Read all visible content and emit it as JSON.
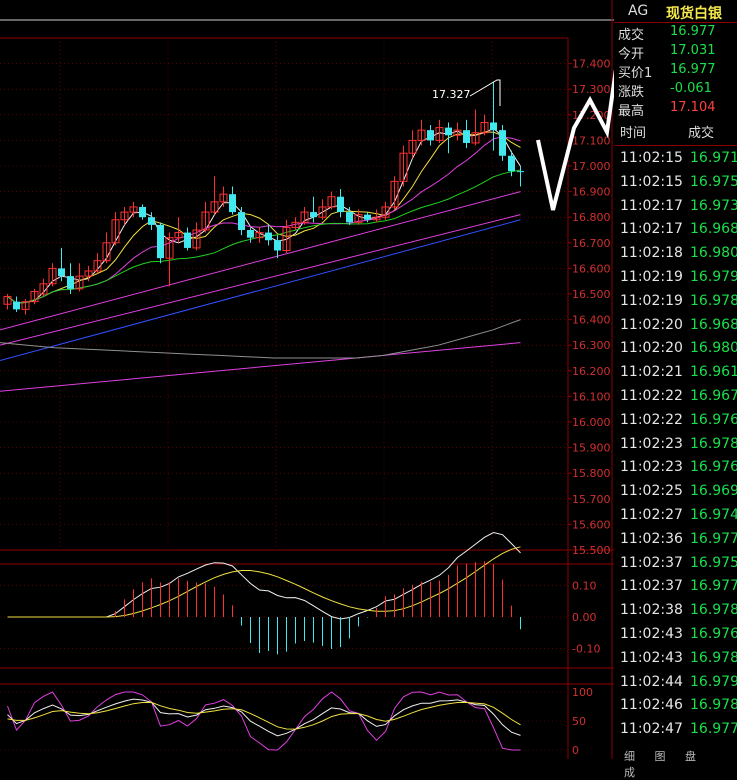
{
  "instrument": {
    "code": "AG",
    "name": "现货白银"
  },
  "quote": [
    {
      "label": "成交",
      "value": "16.977",
      "color": "#19e04a"
    },
    {
      "label": "今开",
      "value": "17.031",
      "color": "#19e04a"
    },
    {
      "label": "买价1",
      "value": "16.977",
      "color": "#19e04a"
    },
    {
      "label": "涨跌",
      "value": "-0.061",
      "color": "#19e04a"
    },
    {
      "label": "最高",
      "value": "17.104",
      "color": "#ff4040"
    }
  ],
  "ticks_header": {
    "time": "时间",
    "price": "成交"
  },
  "ticks": [
    {
      "time": "11:02:15",
      "price": "16.971"
    },
    {
      "time": "11:02:15",
      "price": "16.975"
    },
    {
      "time": "11:02:17",
      "price": "16.973"
    },
    {
      "time": "11:02:17",
      "price": "16.968"
    },
    {
      "time": "11:02:18",
      "price": "16.980"
    },
    {
      "time": "11:02:19",
      "price": "16.979"
    },
    {
      "time": "11:02:19",
      "price": "16.978"
    },
    {
      "time": "11:02:20",
      "price": "16.968"
    },
    {
      "time": "11:02:20",
      "price": "16.980"
    },
    {
      "time": "11:02:21",
      "price": "16.961"
    },
    {
      "time": "11:02:22",
      "price": "16.967"
    },
    {
      "time": "11:02:22",
      "price": "16.976"
    },
    {
      "time": "11:02:23",
      "price": "16.978"
    },
    {
      "time": "11:02:23",
      "price": "16.976"
    },
    {
      "time": "11:02:25",
      "price": "16.969"
    },
    {
      "time": "11:02:27",
      "price": "16.974"
    },
    {
      "time": "11:02:36",
      "price": "16.977"
    },
    {
      "time": "11:02:37",
      "price": "16.975"
    },
    {
      "time": "11:02:37",
      "price": "16.977"
    },
    {
      "time": "11:02:38",
      "price": "16.978"
    },
    {
      "time": "11:02:43",
      "price": "16.976"
    },
    {
      "time": "11:02:43",
      "price": "16.978"
    },
    {
      "time": "11:02:44",
      "price": "16.979"
    },
    {
      "time": "11:02:46",
      "price": "16.978"
    },
    {
      "time": "11:02:47",
      "price": "16.977"
    }
  ],
  "bottom_tabs": "细 图 盘 成",
  "colors": {
    "up": "#ff3030",
    "down": "#40e8f0",
    "grid": "#8b0000",
    "axis_text": "#d03030",
    "ma_white": "#f0f0f0",
    "ma_yellow": "#f0e040",
    "ma_magenta": "#e040e0",
    "ma_green": "#20d020",
    "ma_blue": "#3050ff",
    "ma_grey": "#909090"
  },
  "chart_data": [
    {
      "type": "candlestick",
      "ylim": [
        15.5,
        17.5
      ],
      "y_ticks": [
        "17.400",
        "17.300",
        "17.200",
        "17.100",
        "17.000",
        "16.900",
        "16.800",
        "16.700",
        "16.600",
        "16.500",
        "16.400",
        "16.300",
        "16.200",
        "16.100",
        "16.000",
        "15.900",
        "15.800",
        "15.700",
        "15.600",
        "15.500"
      ],
      "high_annotation": "17.327",
      "candles": [
        [
          16.46,
          16.49,
          16.44,
          16.5
        ],
        [
          16.47,
          16.44,
          16.43,
          16.49
        ],
        [
          16.44,
          16.47,
          16.42,
          16.48
        ],
        [
          16.47,
          16.51,
          16.46,
          16.52
        ],
        [
          16.5,
          16.54,
          16.49,
          16.56
        ],
        [
          16.54,
          16.6,
          16.53,
          16.62
        ],
        [
          16.6,
          16.57,
          16.55,
          16.68
        ],
        [
          16.57,
          16.52,
          16.5,
          16.62
        ],
        [
          16.52,
          16.57,
          16.51,
          16.62
        ],
        [
          16.57,
          16.59,
          16.55,
          16.61
        ],
        [
          16.59,
          16.63,
          16.58,
          16.66
        ],
        [
          16.63,
          16.7,
          16.62,
          16.74
        ],
        [
          16.7,
          16.79,
          16.69,
          16.82
        ],
        [
          16.79,
          16.82,
          16.77,
          16.84
        ],
        [
          16.82,
          16.84,
          16.8,
          16.86
        ],
        [
          16.84,
          16.8,
          16.79,
          16.85
        ],
        [
          16.8,
          16.77,
          16.75,
          16.82
        ],
        [
          16.77,
          16.64,
          16.62,
          16.78
        ],
        [
          16.64,
          16.72,
          16.53,
          16.74
        ],
        [
          16.72,
          16.74,
          16.7,
          16.8
        ],
        [
          16.74,
          16.68,
          16.67,
          16.76
        ],
        [
          16.68,
          16.75,
          16.67,
          16.78
        ],
        [
          16.75,
          16.82,
          16.74,
          16.86
        ],
        [
          16.82,
          16.86,
          16.81,
          16.96
        ],
        [
          16.86,
          16.89,
          16.84,
          16.92
        ],
        [
          16.89,
          16.82,
          16.81,
          16.92
        ],
        [
          16.82,
          16.75,
          16.73,
          16.84
        ],
        [
          16.75,
          16.72,
          16.7,
          16.76
        ],
        [
          16.72,
          16.74,
          16.7,
          16.76
        ],
        [
          16.74,
          16.71,
          16.69,
          16.77
        ],
        [
          16.71,
          16.67,
          16.64,
          16.73
        ],
        [
          16.67,
          16.76,
          16.66,
          16.79
        ],
        [
          16.76,
          16.78,
          16.75,
          16.8
        ],
        [
          16.78,
          16.82,
          16.77,
          16.84
        ],
        [
          16.82,
          16.8,
          16.78,
          16.88
        ],
        [
          16.8,
          16.84,
          16.79,
          16.87
        ],
        [
          16.84,
          16.88,
          16.83,
          16.9
        ],
        [
          16.88,
          16.82,
          16.8,
          16.91
        ],
        [
          16.82,
          16.78,
          16.77,
          16.84
        ],
        [
          16.78,
          16.81,
          16.77,
          16.83
        ],
        [
          16.81,
          16.79,
          16.78,
          16.82
        ],
        [
          16.79,
          16.8,
          16.78,
          16.83
        ],
        [
          16.8,
          16.84,
          16.79,
          16.86
        ],
        [
          16.84,
          16.94,
          16.83,
          16.96
        ],
        [
          16.94,
          17.05,
          16.92,
          17.08
        ],
        [
          17.05,
          17.1,
          17.03,
          17.14
        ],
        [
          17.1,
          17.14,
          17.08,
          17.18
        ],
        [
          17.14,
          17.1,
          17.08,
          17.16
        ],
        [
          17.1,
          17.15,
          17.09,
          17.18
        ],
        [
          17.15,
          17.12,
          17.05,
          17.17
        ],
        [
          17.12,
          17.14,
          17.1,
          17.17
        ],
        [
          17.14,
          17.09,
          17.07,
          17.18
        ],
        [
          17.09,
          17.13,
          17.08,
          17.22
        ],
        [
          17.13,
          17.17,
          17.12,
          17.2
        ],
        [
          17.17,
          17.14,
          17.06,
          17.33
        ],
        [
          17.14,
          17.04,
          17.02,
          17.16
        ],
        [
          17.04,
          16.98,
          16.96,
          17.06
        ],
        [
          16.98,
          16.977,
          16.92,
          17.0
        ]
      ]
    },
    {
      "type": "line",
      "ylim": [
        -0.15,
        0.15
      ],
      "y_ticks": [
        "0.10",
        "0.00",
        "-0.10"
      ]
    },
    {
      "type": "line",
      "ylim": [
        0,
        100
      ],
      "y_ticks": [
        "100",
        "50",
        "0"
      ]
    }
  ]
}
